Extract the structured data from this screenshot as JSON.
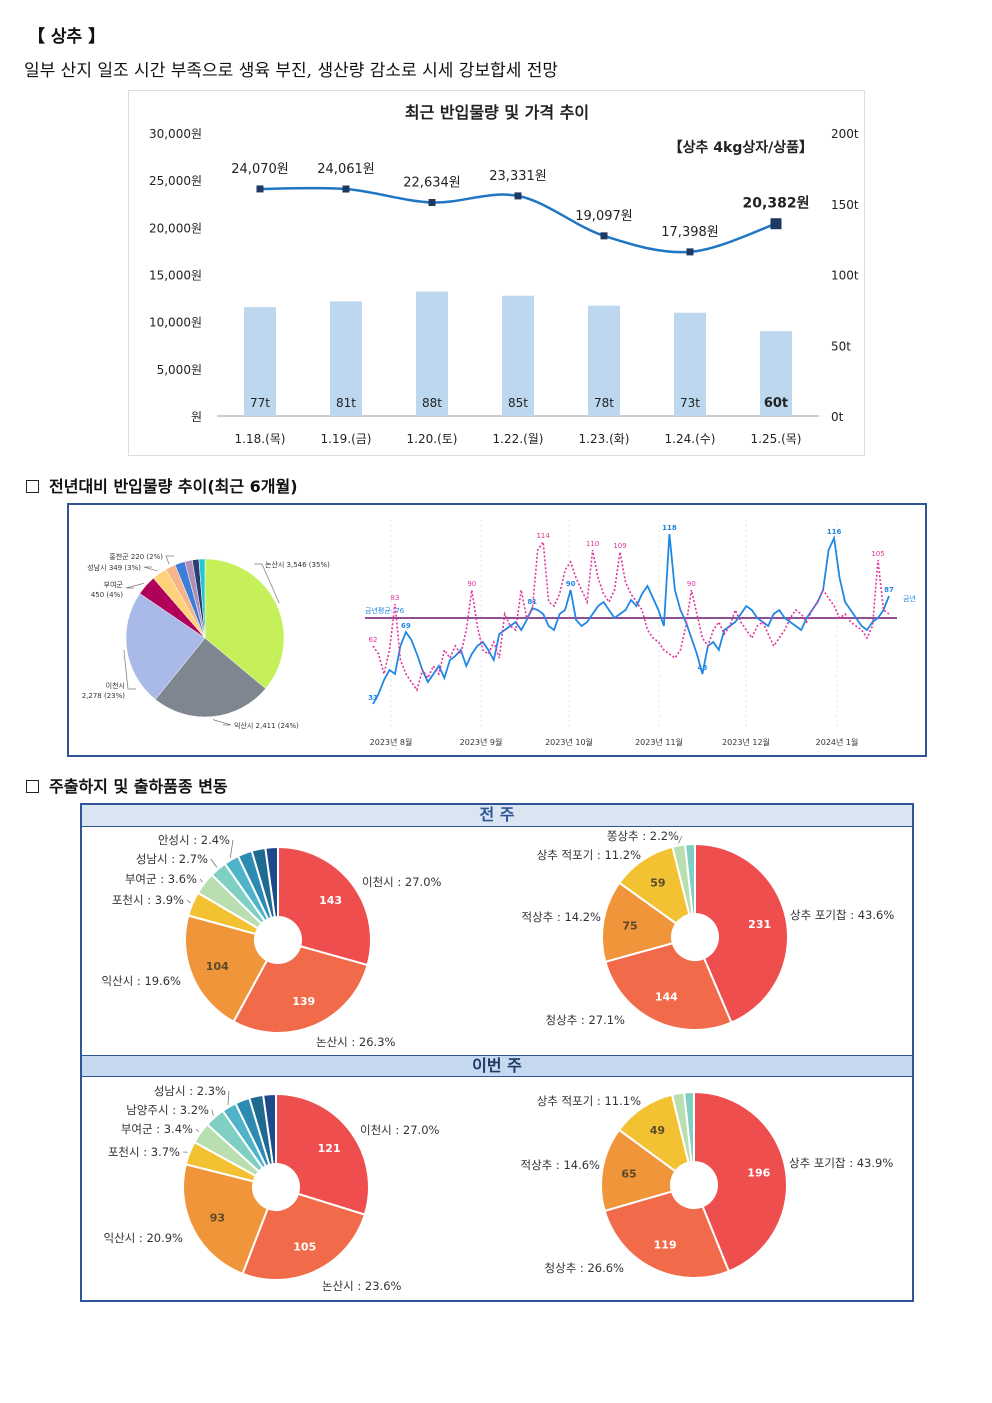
{
  "header": {
    "title": "【 상추 】",
    "summary": "일부 산지 일조 시간 부족으로 생육 부진, 생산량 감소로 시세 강보합세 전망"
  },
  "combo": {
    "title": "최근 반입물량 및 가격 추이",
    "unit_note": "【상추 4kg상자/상품】",
    "left_ticks": [
      "30,000원",
      "25,000원",
      "20,000원",
      "15,000원",
      "10,000원",
      "5,000원",
      "원"
    ],
    "right_ticks": [
      "200t",
      "150t",
      "100t",
      "50t",
      "0t"
    ],
    "colors": {
      "line": "#1f77c4",
      "bar": "#bdd7ee",
      "marker": "#1f3864"
    }
  },
  "chart_data": [
    {
      "type": "bar",
      "title": "최근 반입물량 및 가격 추이",
      "categories": [
        "1.18.(목)",
        "1.19.(금)",
        "1.20.(토)",
        "1.22.(월)",
        "1.23.(화)",
        "1.24.(수)",
        "1.25.(목)"
      ],
      "series": [
        {
          "name": "반입물량",
          "axis": "right",
          "values": [
            77,
            81,
            88,
            85,
            78,
            73,
            60
          ],
          "labels": [
            "77t",
            "81t",
            "88t",
            "85t",
            "78t",
            "73t",
            "60t"
          ]
        },
        {
          "name": "가격",
          "axis": "left",
          "type": "line",
          "values": [
            24070,
            24061,
            22634,
            23331,
            19097,
            17398,
            20382
          ],
          "labels": [
            "24,070원",
            "24,061원",
            "22,634원",
            "23,331원",
            "19,097원",
            "17,398원",
            "20,382원"
          ]
        }
      ],
      "ylim_left": [
        0,
        30000
      ],
      "ylim_right": [
        0,
        200
      ],
      "grid": false
    },
    {
      "type": "pie",
      "slices": [
        {
          "label": "논산시 3,546 (35%)",
          "value": 35,
          "color": "#c5f05a"
        },
        {
          "label": "익산시 2,411 (24%)",
          "value": 24,
          "color": "#7f868f"
        },
        {
          "label": "이천시 2,278 (23%)",
          "value": 23,
          "color": "#a9b9e8"
        },
        {
          "label": "부여군 450 (4%)",
          "value": 4,
          "color": "#b0005a"
        },
        {
          "label": "성남시 349 (3%)",
          "value": 3,
          "color": "#ffd27a"
        },
        {
          "label": "홍천군 220 (2%)",
          "value": 2,
          "color": "#f5b48a"
        },
        {
          "label": "",
          "value": 2,
          "color": "#3b7dd8"
        },
        {
          "label": "",
          "value": 1.5,
          "color": "#b08fb7"
        },
        {
          "label": "",
          "value": 1.3,
          "color": "#2c3e70"
        },
        {
          "label": "",
          "value": 1.2,
          "color": "#26c6da"
        }
      ]
    },
    {
      "type": "line",
      "x_labels": [
        "2023년 8월",
        "2023년 9월",
        "2023년 10월",
        "2023년 11월",
        "2023년 12월",
        "2024년 1월"
      ],
      "avg_label": "금년평균: 76",
      "avg_value": 76,
      "ylim": [
        25,
        125
      ],
      "series": [
        {
          "name": "금년",
          "color": "#1f88e5",
          "values": [
            33,
            38,
            45,
            50,
            48,
            62,
            69,
            65,
            58,
            50,
            44,
            48,
            52,
            46,
            55,
            57,
            60,
            52,
            58,
            62,
            64,
            60,
            55,
            68,
            70,
            72,
            74,
            70,
            75,
            81,
            80,
            78,
            72,
            70,
            78,
            80,
            90,
            75,
            72,
            74,
            78,
            82,
            84,
            80,
            76,
            78,
            80,
            85,
            82,
            88,
            92,
            86,
            80,
            72,
            118,
            90,
            80,
            74,
            66,
            58,
            48,
            62,
            64,
            60,
            70,
            72,
            74,
            78,
            82,
            80,
            76,
            74,
            72,
            78,
            80,
            76,
            74,
            72,
            70,
            76,
            80,
            84,
            90,
            110,
            116,
            96,
            84,
            80,
            76,
            72,
            70,
            74,
            76,
            80,
            87
          ],
          "labels": [
            [
              0,
              "33"
            ],
            [
              6,
              "69"
            ],
            [
              29,
              "81"
            ],
            [
              36,
              "90"
            ],
            [
              54,
              "118"
            ],
            [
              60,
              "48"
            ],
            [
              84,
              "116"
            ],
            [
              94,
              "87"
            ]
          ]
        },
        {
          "name": "",
          "color": "#e0359a",
          "dashed": true,
          "values": [
            62,
            58,
            48,
            60,
            83,
            55,
            48,
            44,
            40,
            50,
            46,
            52,
            48,
            60,
            56,
            62,
            58,
            70,
            90,
            72,
            60,
            58,
            64,
            56,
            78,
            72,
            70,
            90,
            76,
            80,
            110,
            114,
            84,
            82,
            88,
            100,
            104,
            96,
            90,
            84,
            110,
            96,
            88,
            84,
            90,
            109,
            94,
            88,
            84,
            80,
            70,
            66,
            64,
            60,
            58,
            56,
            60,
            72,
            90,
            78,
            66,
            62,
            70,
            74,
            68,
            72,
            80,
            74,
            70,
            66,
            72,
            74,
            68,
            62,
            66,
            70,
            76,
            80,
            78,
            74,
            80,
            84,
            90,
            86,
            82,
            76,
            78,
            74,
            72,
            70,
            66,
            72,
            105,
            80,
            78
          ],
          "labels": [
            [
              0,
              "62"
            ],
            [
              4,
              "83"
            ],
            [
              18,
              "90"
            ],
            [
              31,
              "114"
            ],
            [
              40,
              "110"
            ],
            [
              45,
              "109"
            ],
            [
              58,
              "90"
            ],
            [
              92,
              "105"
            ]
          ]
        }
      ]
    },
    {
      "type": "pie",
      "title": "전 주",
      "slices": [
        {
          "label": "이천시 : 27.0%",
          "value": 27.0,
          "inner": "143",
          "color": "#ef4e4f"
        },
        {
          "label": "논산시 : 26.3%",
          "value": 26.3,
          "inner": "139",
          "color": "#f16b4a"
        },
        {
          "label": "익산시 : 19.6%",
          "value": 19.6,
          "inner": "104",
          "color": "#f0953a"
        },
        {
          "label": "포천시 : 3.9%",
          "value": 3.9,
          "inner": "",
          "color": "#f3c232"
        },
        {
          "label": "부여군 : 3.6%",
          "value": 3.6,
          "inner": "",
          "color": "#b9dfb0"
        },
        {
          "label": "성남시 : 2.7%",
          "value": 2.7,
          "inner": "",
          "color": "#7fd0c2"
        },
        {
          "label": "안성시 : 2.4%",
          "value": 2.4,
          "inner": "",
          "color": "#4fb3c9"
        },
        {
          "label": "",
          "value": 2.3,
          "inner": "",
          "color": "#2d8ab3"
        },
        {
          "label": "",
          "value": 2.2,
          "inner": "",
          "color": "#1f6a8f"
        },
        {
          "label": "",
          "value": 2.0,
          "inner": "",
          "color": "#1c4a8a"
        }
      ]
    },
    {
      "type": "pie",
      "title": "전 주",
      "slices": [
        {
          "label": "상추 포기찹 : 43.6%",
          "value": 43.6,
          "inner": "231",
          "color": "#ef4e4f"
        },
        {
          "label": "청상추 : 27.1%",
          "value": 27.1,
          "inner": "144",
          "color": "#f16b4a"
        },
        {
          "label": "적상추 : 14.2%",
          "value": 14.2,
          "inner": "75",
          "color": "#f0953a"
        },
        {
          "label": "상추 적포기 : 11.2%",
          "value": 11.2,
          "inner": "59",
          "color": "#f3c232"
        },
        {
          "label": "쫑상추 : 2.2%",
          "value": 2.2,
          "inner": "",
          "color": "#b9dfb0"
        },
        {
          "label": "",
          "value": 1.7,
          "inner": "",
          "color": "#7fd0c2"
        }
      ]
    },
    {
      "type": "pie",
      "title": "이번 주",
      "slices": [
        {
          "label": "이천시 : 27.0%",
          "value": 27.0,
          "inner": "121",
          "color": "#ef4e4f"
        },
        {
          "label": "논산시 : 23.6%",
          "value": 23.6,
          "inner": "105",
          "color": "#f16b4a"
        },
        {
          "label": "익산시 : 20.9%",
          "value": 20.9,
          "inner": "93",
          "color": "#f0953a"
        },
        {
          "label": "포천시 : 3.7%",
          "value": 3.7,
          "inner": "",
          "color": "#f3c232"
        },
        {
          "label": "부여군 : 3.4%",
          "value": 3.4,
          "inner": "",
          "color": "#b9dfb0"
        },
        {
          "label": "남양주시 : 3.2%",
          "value": 3.2,
          "inner": "",
          "color": "#7fd0c2"
        },
        {
          "label": "성남시 : 2.3%",
          "value": 2.3,
          "inner": "",
          "color": "#4fb3c9"
        },
        {
          "label": "",
          "value": 2.3,
          "inner": "",
          "color": "#2d8ab3"
        },
        {
          "label": "",
          "value": 2.2,
          "inner": "",
          "color": "#1f6a8f"
        },
        {
          "label": "",
          "value": 2.0,
          "inner": "",
          "color": "#1c4a8a"
        }
      ]
    },
    {
      "type": "pie",
      "title": "이번 주",
      "slices": [
        {
          "label": "상추 포기찹 : 43.9%",
          "value": 43.9,
          "inner": "196",
          "color": "#ef4e4f"
        },
        {
          "label": "청상추 : 26.6%",
          "value": 26.6,
          "inner": "119",
          "color": "#f16b4a"
        },
        {
          "label": "적상추 : 14.6%",
          "value": 14.6,
          "inner": "65",
          "color": "#f0953a"
        },
        {
          "label": "상추 적포기 : 11.1%",
          "value": 11.1,
          "inner": "49",
          "color": "#f3c232"
        },
        {
          "label": "",
          "value": 2.1,
          "inner": "",
          "color": "#b9dfb0"
        },
        {
          "label": "",
          "value": 1.7,
          "inner": "",
          "color": "#7fd0c2"
        }
      ]
    }
  ],
  "sections": {
    "trend_title": "전년대비 반입물량 추이(최근 6개월)",
    "ship_title": "주출하지 및 출하품종 변동",
    "prev_week": "전 주",
    "this_week": "이번 주"
  }
}
